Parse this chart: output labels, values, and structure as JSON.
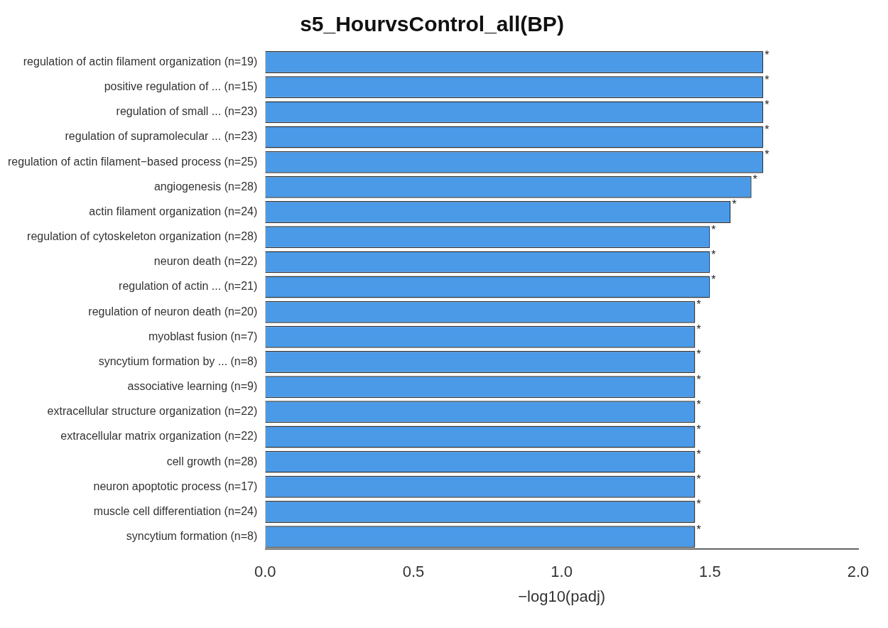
{
  "chart_data": {
    "type": "bar",
    "orientation": "horizontal",
    "title": "s5_HourvsControl_all(BP)",
    "xlabel": "−log10(padj)",
    "categories": [
      "regulation of actin filament organization (n=19)",
      "positive regulation of ... (n=15)",
      "regulation of small ... (n=23)",
      "regulation of supramolecular ... (n=23)",
      "regulation of actin filament−based process (n=25)",
      "angiogenesis (n=28)",
      "actin filament organization (n=24)",
      "regulation of cytoskeleton organization (n=28)",
      "neuron death (n=22)",
      "regulation of actin ... (n=21)",
      "regulation of neuron death (n=20)",
      "myoblast fusion (n=7)",
      "syncytium formation by ... (n=8)",
      "associative learning (n=9)",
      "extracellular structure organization (n=22)",
      "extracellular matrix organization (n=22)",
      "cell growth (n=28)",
      "neuron apoptotic process (n=17)",
      "muscle cell differentiation (n=24)",
      "syncytium formation (n=8)"
    ],
    "values": [
      1.68,
      1.68,
      1.68,
      1.68,
      1.68,
      1.64,
      1.57,
      1.5,
      1.5,
      1.5,
      1.45,
      1.45,
      1.45,
      1.45,
      1.45,
      1.45,
      1.45,
      1.45,
      1.45,
      1.45
    ],
    "value_labels": [
      "*",
      "*",
      "*",
      "*",
      "*",
      "*",
      "*",
      "*",
      "*",
      "*",
      "*",
      "*",
      "*",
      "*",
      "*",
      "*",
      "*",
      "*",
      "*",
      "*"
    ],
    "color": "#4a9ae8",
    "xlim": [
      0,
      2
    ],
    "xticks": [
      {
        "value": 0,
        "label": "0.0"
      },
      {
        "value": 0.5,
        "label": "0.5"
      },
      {
        "value": 1,
        "label": "1.0"
      },
      {
        "value": 1.5,
        "label": "1.5"
      },
      {
        "value": 2,
        "label": "2.0"
      }
    ],
    "grid": false,
    "legend": false
  }
}
